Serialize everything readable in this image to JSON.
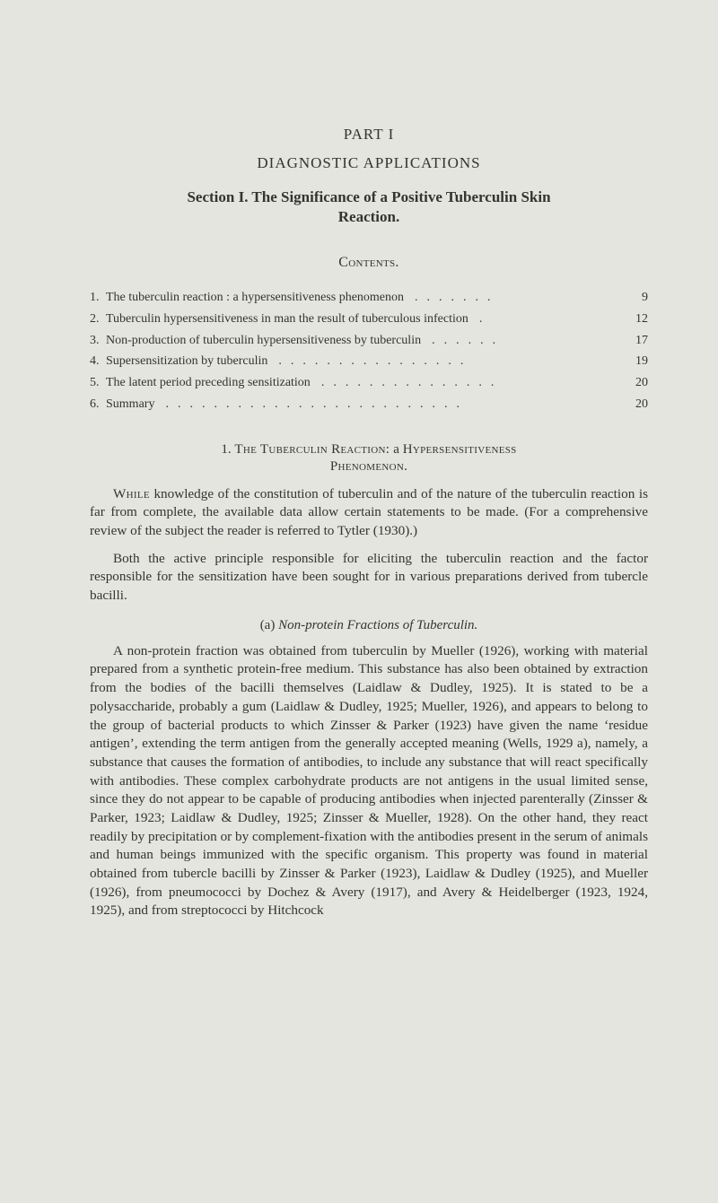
{
  "colors": {
    "background": "#e4e5df",
    "text": "#333433"
  },
  "typography": {
    "body_fontsize": 15.2,
    "heading_fontsize": 17,
    "contents_fontsize": 14,
    "line_height": 1.36
  },
  "part": {
    "title": "PART I",
    "subtitle": "DIAGNOSTIC APPLICATIONS"
  },
  "section": {
    "line1": "Section I.  The Significance of a Positive Tuberculin Skin",
    "line2": "Reaction."
  },
  "contents": {
    "heading": "Contents.",
    "items": [
      {
        "num": "1.",
        "label": "The tuberculin reaction : a hypersensitiveness phenomenon",
        "page": "9"
      },
      {
        "num": "2.",
        "label": "Tuberculin hypersensitiveness in man the result of tuberculous infection",
        "page": "12"
      },
      {
        "num": "3.",
        "label": "Non-production of tuberculin hypersensitiveness by tuberculin",
        "page": "17"
      },
      {
        "num": "4.",
        "label": "Supersensitization by tuberculin",
        "page": "19"
      },
      {
        "num": "5.",
        "label": "The latent period preceding sensitization",
        "page": "20"
      },
      {
        "num": "6.",
        "label": "Summary",
        "page": "20"
      }
    ]
  },
  "subsection1": {
    "line1_num": "1. ",
    "line1_a": "The Tuberculin Reaction: ",
    "line1_b": "a ",
    "line1_c": "Hypersensitiveness",
    "line2": "Phenomenon."
  },
  "para1a_lead": "While",
  "para1a": " knowledge of the constitution of tuberculin and of the nature of the tuberculin reaction is far from complete, the available data allow certain statements to be made. (For a comprehensive review of the subject the reader is referred to Tytler (1930).)",
  "para1b": "Both the active principle responsible for eliciting the tuberculin reaction and the factor responsible for the sensitization have been sought for in various preparations derived from tubercle bacilli.",
  "subsectA": {
    "label": "(a) ",
    "title": "Non-protein Fractions of Tuberculin."
  },
  "para2": "A non-protein fraction was obtained from tuberculin by Mueller (1926), working with material prepared from a synthetic protein-free medium. This substance has also been obtained by extraction from the bodies of the bacilli themselves (Laidlaw & Dudley, 1925). It is stated to be a polysaccharide, probably a gum (Laidlaw & Dudley, 1925; Mueller, 1926), and appears to belong to the group of bacterial products to which Zinsser & Parker (1923) have given the name ‘residue antigen’, extending the term antigen from the generally accepted meaning (Wells, 1929 a), namely, a substance that causes the formation of antibodies, to include any substance that will react specifically with antibodies. These complex carbohydrate products are not antigens in the usual limited sense, since they do not appear to be capable of producing antibodies when injected parenterally (Zinsser & Parker, 1923; Laidlaw & Dudley, 1925; Zinsser & Mueller, 1928). On the other hand, they react readily by precipitation or by complement-fixation with the antibodies present in the serum of animals and human beings immunized with the specific organism. This property was found in material obtained from tubercle bacilli by Zinsser & Parker (1923), Laidlaw & Dudley (1925), and Mueller (1926), from pneumococci by Dochez & Avery (1917), and Avery & Heidelberger (1923, 1924, 1925), and from streptococci by Hitchcock"
}
